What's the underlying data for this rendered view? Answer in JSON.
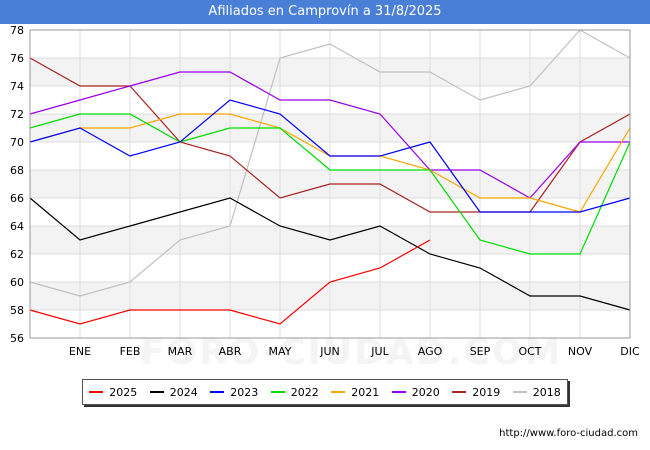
{
  "header": {
    "title": "Afiliados en Camprovín a 31/8/2025"
  },
  "credit": "http://www.foro-ciudad.com",
  "watermark": "FORO-CIUDAD.COM",
  "chart_data": {
    "type": "line",
    "categories": [
      "",
      "ENE",
      "FEB",
      "MAR",
      "ABR",
      "MAY",
      "JUN",
      "JUL",
      "AGO",
      "SEP",
      "OCT",
      "NOV",
      "DIC"
    ],
    "ylim": [
      56,
      78
    ],
    "yticks": [
      56,
      58,
      60,
      62,
      64,
      66,
      68,
      70,
      72,
      74,
      76,
      78
    ],
    "grid": true,
    "legend_position": "bottom",
    "series": [
      {
        "name": "2025",
        "color": "#ff0000",
        "values": [
          58,
          57,
          58,
          58,
          58,
          57,
          60,
          61,
          63,
          null,
          null,
          null,
          null
        ]
      },
      {
        "name": "2024",
        "color": "#000000",
        "values": [
          66,
          63,
          64,
          65,
          66,
          64,
          63,
          64,
          62,
          61,
          59,
          59,
          58
        ]
      },
      {
        "name": "2023",
        "color": "#0000ff",
        "values": [
          70,
          71,
          69,
          70,
          73,
          72,
          69,
          69,
          70,
          65,
          65,
          65,
          66
        ]
      },
      {
        "name": "2022",
        "color": "#00dd00",
        "values": [
          71,
          72,
          72,
          70,
          71,
          71,
          68,
          68,
          68,
          63,
          62,
          62,
          70
        ]
      },
      {
        "name": "2021",
        "color": "#ffa500",
        "values": [
          70,
          71,
          71,
          72,
          72,
          71,
          69,
          69,
          68,
          66,
          66,
          65,
          71
        ]
      },
      {
        "name": "2020",
        "color": "#9900ee",
        "values": [
          72,
          73,
          74,
          75,
          75,
          73,
          73,
          72,
          68,
          68,
          66,
          70,
          70
        ]
      },
      {
        "name": "2019",
        "color": "#aa2222",
        "values": [
          76,
          74,
          74,
          70,
          69,
          66,
          67,
          67,
          65,
          65,
          65,
          70,
          72
        ]
      },
      {
        "name": "2018",
        "color": "#c0c0c0",
        "values": [
          60,
          59,
          60,
          63,
          64,
          76,
          77,
          75,
          75,
          73,
          74,
          78,
          76
        ]
      }
    ]
  }
}
